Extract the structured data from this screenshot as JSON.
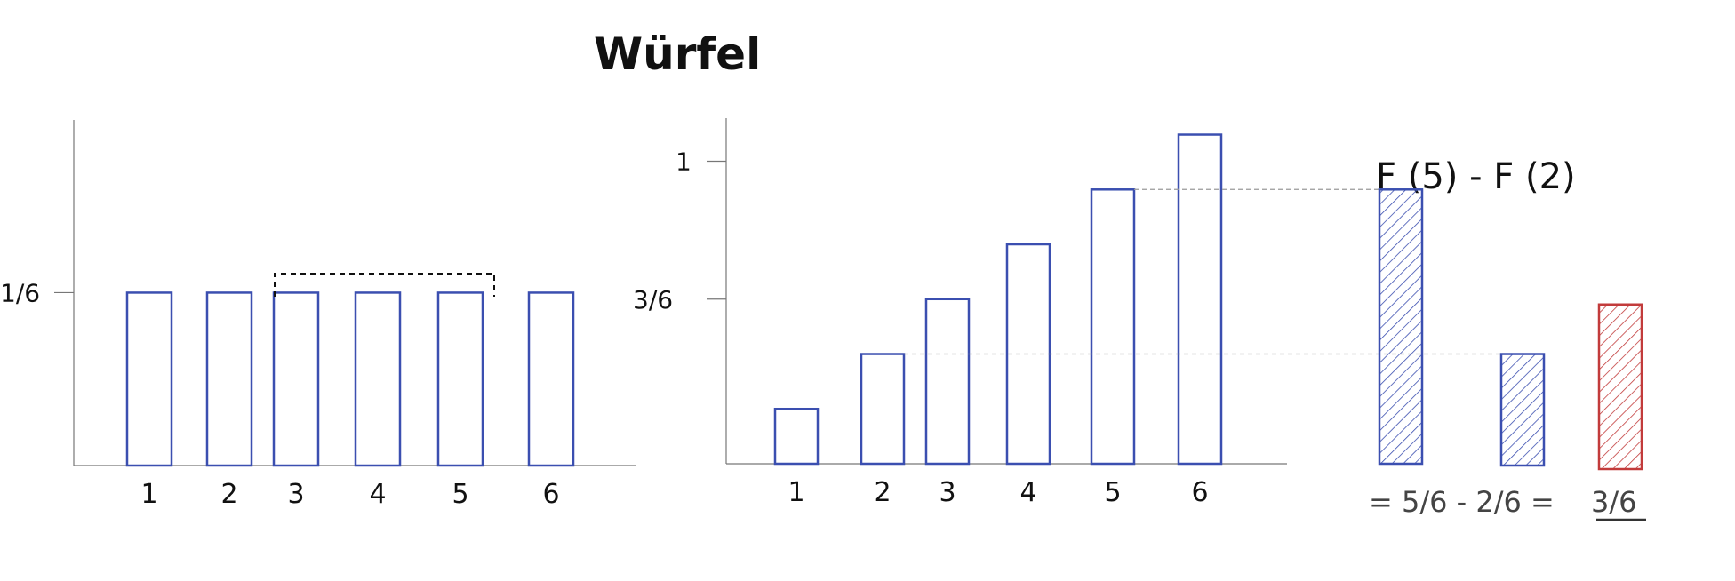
{
  "title": "Würfel",
  "colors": {
    "bar": "#3b4fb0",
    "highlight": "#c23b3b",
    "axis": "#777777",
    "text": "#111111"
  },
  "chart_data": [
    {
      "type": "bar",
      "name": "pmf",
      "categories": [
        "1",
        "2",
        "3",
        "4",
        "5",
        "6"
      ],
      "values": [
        0.1667,
        0.1667,
        0.1667,
        0.1667,
        0.1667,
        0.1667
      ],
      "ylim": [
        0,
        0.3333
      ],
      "yticks": [
        {
          "value": 0.1667,
          "label": "1/6"
        }
      ],
      "bracket_categories": [
        "3",
        "5"
      ],
      "grid": false
    },
    {
      "type": "bar",
      "name": "cdf",
      "categories": [
        "1",
        "2",
        "3",
        "4",
        "5",
        "6"
      ],
      "values": [
        0.1667,
        0.3333,
        0.5,
        0.6667,
        0.8333,
        1.0
      ],
      "ylim": [
        0,
        1.05
      ],
      "yticks": [
        {
          "value": 1,
          "label": "1"
        },
        {
          "value": 0.5,
          "label": "3/6"
        }
      ],
      "grid": false
    },
    {
      "type": "bar",
      "name": "difference",
      "title": "F (5) - F (2)",
      "values": [
        0.8333,
        0.3333,
        0.5
      ],
      "hatched": true,
      "colors": [
        "bar",
        "bar",
        "highlight"
      ],
      "annotation": {
        "prefix": "= 5/6 - 2/6 =",
        "result": "3/6"
      }
    }
  ]
}
